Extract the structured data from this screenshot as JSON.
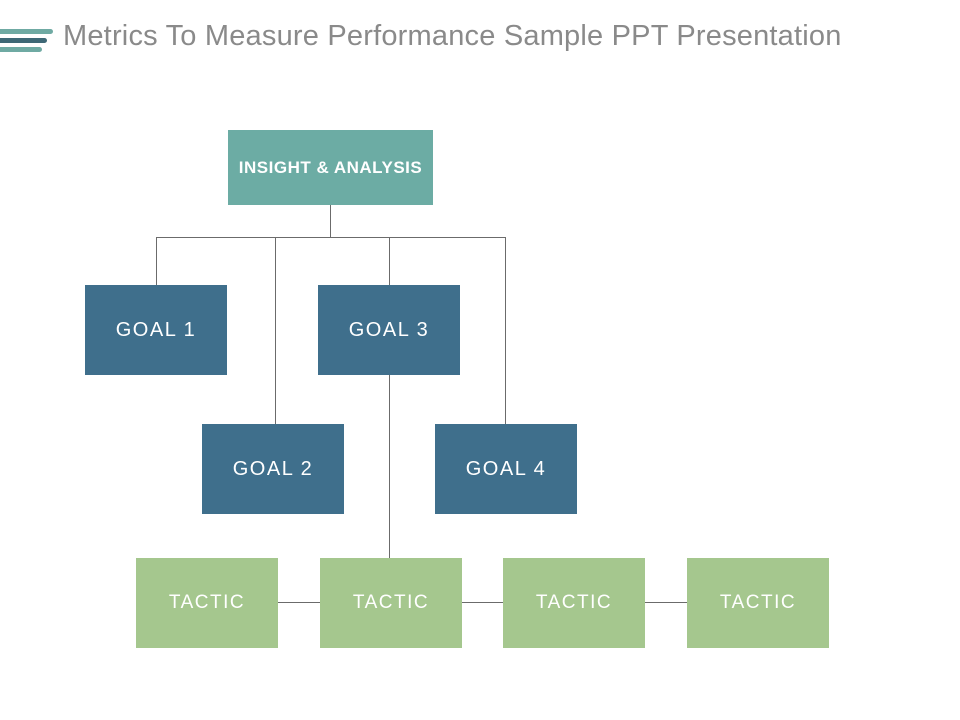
{
  "slide": {
    "title": "Metrics To Measure Performance Sample PPT Presentation"
  },
  "diagram": {
    "root": {
      "label": "INSIGHT & ANALYSIS"
    },
    "goals": [
      {
        "label": "GOAL 1"
      },
      {
        "label": "GOAL 2"
      },
      {
        "label": "GOAL 3"
      },
      {
        "label": "GOAL 4"
      }
    ],
    "tactics": [
      {
        "label": "TACTIC"
      },
      {
        "label": "TACTIC"
      },
      {
        "label": "TACTIC"
      },
      {
        "label": "TACTIC"
      }
    ],
    "edges": [
      {
        "from": "insight-analysis",
        "to": "goal-1"
      },
      {
        "from": "insight-analysis",
        "to": "goal-2"
      },
      {
        "from": "insight-analysis",
        "to": "goal-3"
      },
      {
        "from": "insight-analysis",
        "to": "goal-4"
      },
      {
        "from": "goal-3",
        "to": "tactic-2"
      },
      {
        "from": "tactic-1",
        "to": "tactic-2"
      },
      {
        "from": "tactic-2",
        "to": "tactic-3"
      },
      {
        "from": "tactic-3",
        "to": "tactic-4"
      }
    ]
  },
  "colors": {
    "root_teal": "#6CACA4",
    "goal_slate_blue": "#3F6F8C",
    "tactic_green": "#A5C78E",
    "title_gray": "#8A8A8A",
    "connector_gray": "#6B6B6B",
    "stripe_teal": "#6FAAA3",
    "stripe_dark_teal": "#3E6876"
  }
}
